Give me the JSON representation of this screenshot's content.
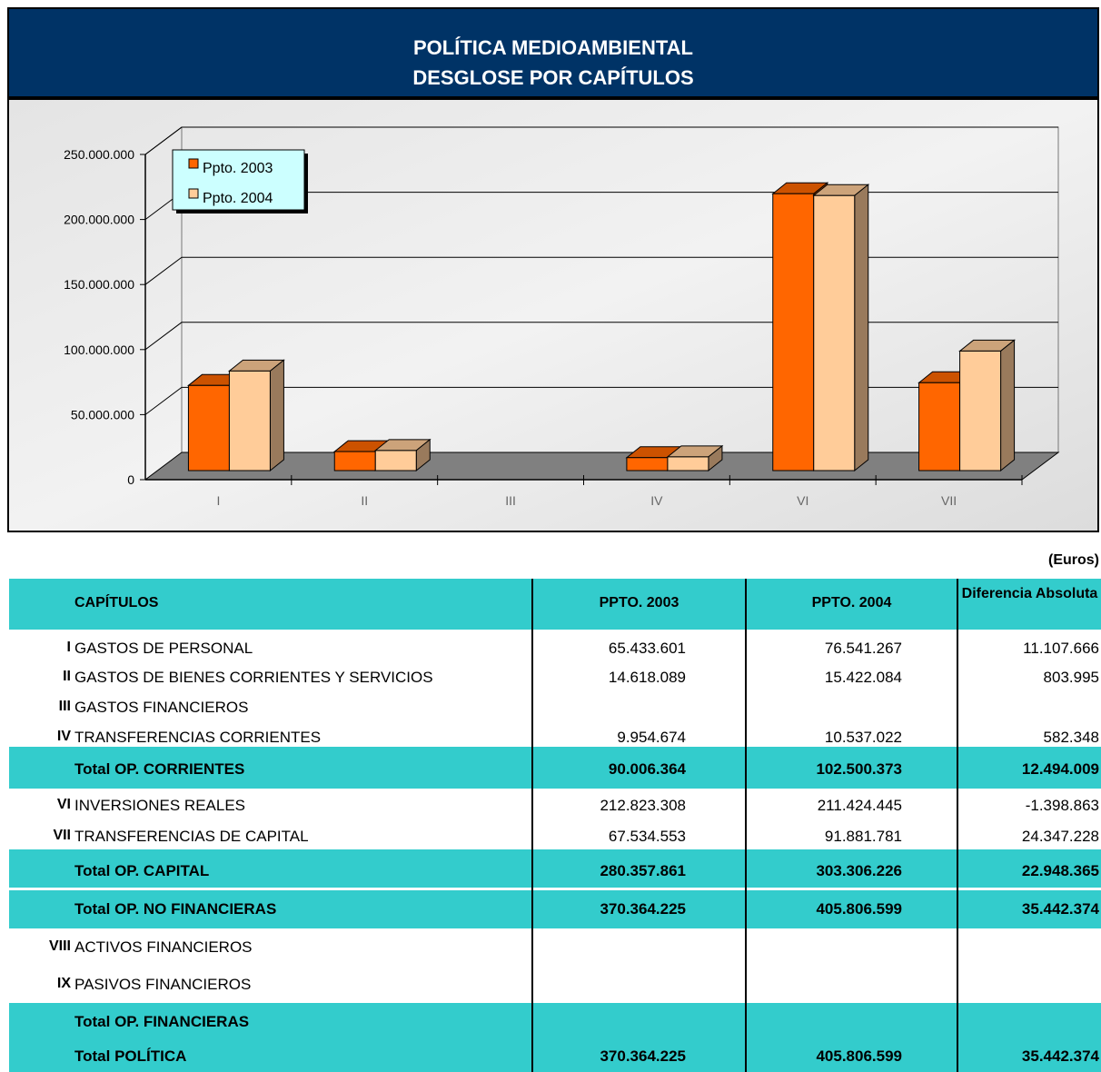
{
  "header": {
    "title": [
      "POLÍTICA MEDIOAMBIENTAL",
      "DESGLOSE POR CAPÍTULOS"
    ]
  },
  "chart_data": {
    "type": "bar3d",
    "categories": [
      "I",
      "II",
      "III",
      "IV",
      "VI",
      "VII"
    ],
    "series": [
      {
        "name": "Ppto. 2003",
        "color": "#ff6600",
        "values": [
          65433601,
          14618089,
          null,
          9954674,
          212823308,
          67534553
        ]
      },
      {
        "name": "Ppto. 2004",
        "color": "#ffcc99",
        "values": [
          76541267,
          15422084,
          null,
          10537022,
          211424445,
          91881781
        ]
      }
    ],
    "ylim": [
      0,
      250000000
    ],
    "yticks": [
      0,
      {
        "value": 50000000,
        "label": "50.000.000"
      },
      {
        "value": 100000000,
        "label": "100.000.000"
      },
      {
        "value": 150000000,
        "label": "150.000.000"
      },
      {
        "value": 200000000,
        "label": "200.000.000"
      },
      {
        "value": 250000000,
        "label": "250.000.000"
      }
    ],
    "grid": true,
    "legend": "upper left"
  },
  "units": "(Euros)",
  "table": {
    "columns": [
      "CAPÍTULOS",
      "PPTO. 2003",
      "PPTO. 2004",
      "Diferencia Absoluta"
    ],
    "rows": [
      [
        "I",
        "GASTOS DE PERSONAL",
        "65.433.601",
        "76.541.267",
        "11.107.666"
      ],
      [
        "II",
        "GASTOS DE BIENES CORRIENTES Y SERVICIOS",
        "14.618.089",
        "15.422.084",
        "803.995"
      ],
      [
        "III",
        "GASTOS FINANCIEROS",
        null,
        null,
        null
      ],
      [
        "IV",
        "TRANSFERENCIAS CORRIENTES",
        "9.954.674",
        "10.537.022",
        "582.348"
      ],
      [
        null,
        "Total OP. CORRIENTES",
        "90.006.364",
        "102.500.373",
        "12.494.009"
      ],
      [
        "VI",
        "INVERSIONES REALES",
        "212.823.308",
        "211.424.445",
        "-1.398.863"
      ],
      [
        "VII",
        "TRANSFERENCIAS DE CAPITAL",
        "67.534.553",
        "91.881.781",
        "24.347.228"
      ],
      [
        null,
        "Total OP. CAPITAL",
        "280.357.861",
        "303.306.226",
        "22.948.365"
      ],
      [
        null,
        "Total OP. NO FINANCIERAS",
        "370.364.225",
        "405.806.599",
        "35.442.374"
      ],
      [
        "VIII",
        "ACTIVOS FINANCIEROS",
        null,
        null,
        null
      ],
      [
        "IX",
        "PASIVOS FINANCIEROS",
        null,
        null,
        null
      ],
      [
        null,
        "Total OP. FINANCIERAS",
        null,
        null,
        null
      ],
      [
        null,
        "Total POLÍTICA",
        "370.364.225",
        "405.806.599",
        "35.442.374"
      ]
    ]
  }
}
